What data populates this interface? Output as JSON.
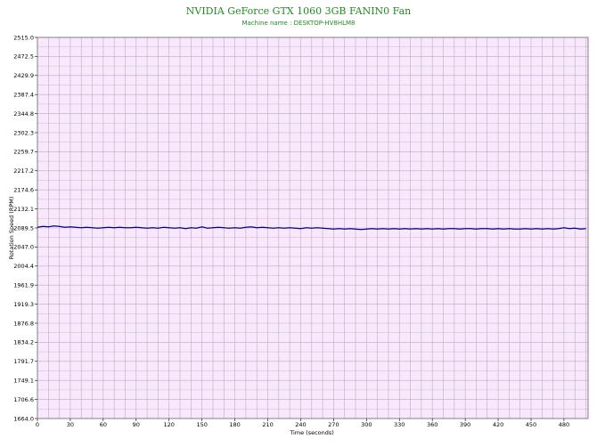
{
  "chart_data": {
    "type": "line",
    "title": "NVIDIA GeForce GTX 1060 3GB FANIN0 Fan",
    "subtitle": "Machine name : DESKTOP-HV8HLM8",
    "xlabel": "Time (seconds)",
    "ylabel": "Rotation Speed (RPM)",
    "xlim": [
      0,
      502
    ],
    "ylim": [
      1664.0,
      2515.0
    ],
    "xticks": [
      "0",
      "30",
      "60",
      "90",
      "120",
      "150",
      "180",
      "210",
      "240",
      "270",
      "300",
      "330",
      "360",
      "390",
      "420",
      "450",
      "480"
    ],
    "yticks": [
      "2515.0",
      "2472.5",
      "2429.9",
      "2387.4",
      "2344.8",
      "2302.3",
      "2259.7",
      "2217.2",
      "2174.6",
      "2132.1",
      "2089.5",
      "2047.0",
      "2004.4",
      "1961.9",
      "1919.3",
      "1876.8",
      "1834.2",
      "1791.7",
      "1749.1",
      "1706.6",
      "1664.0"
    ],
    "grid": true,
    "colors": {
      "background": "#f8e8fc",
      "grid": "#c6a6c8",
      "line": "#00008b",
      "title": "#228b22"
    },
    "series": [
      {
        "x": [
          0,
          5,
          10,
          15,
          20,
          25,
          30,
          35,
          40,
          45,
          50,
          55,
          60,
          65,
          70,
          75,
          80,
          85,
          90,
          95,
          100,
          105,
          110,
          115,
          120,
          125,
          130,
          135,
          140,
          145,
          150,
          155,
          160,
          165,
          170,
          175,
          180,
          185,
          190,
          195,
          200,
          205,
          210,
          215,
          220,
          225,
          230,
          235,
          240,
          245,
          250,
          255,
          260,
          265,
          270,
          275,
          280,
          285,
          290,
          295,
          300,
          305,
          310,
          315,
          320,
          325,
          330,
          335,
          340,
          345,
          350,
          355,
          360,
          365,
          370,
          375,
          380,
          385,
          390,
          395,
          400,
          405,
          410,
          415,
          420,
          425,
          430,
          435,
          440,
          445,
          450,
          455,
          460,
          465,
          470,
          475,
          480,
          485,
          490,
          495,
          500
        ],
        "y": [
          2091,
          2093,
          2092,
          2094,
          2093,
          2091,
          2092,
          2091,
          2090,
          2091,
          2090,
          2089,
          2090,
          2091,
          2090,
          2091,
          2090,
          2090,
          2091,
          2090,
          2089,
          2090,
          2089,
          2091,
          2090,
          2089,
          2090,
          2088,
          2090,
          2089,
          2092,
          2089,
          2090,
          2091,
          2090,
          2089,
          2090,
          2089,
          2091,
          2092,
          2090,
          2091,
          2090,
          2089,
          2090,
          2089,
          2090,
          2089,
          2088,
          2090,
          2089,
          2090,
          2089,
          2088,
          2087,
          2088,
          2087,
          2088,
          2087,
          2086,
          2087,
          2088,
          2087,
          2088,
          2087,
          2088,
          2087,
          2088,
          2087,
          2088,
          2087,
          2088,
          2087,
          2088,
          2087,
          2088,
          2088,
          2087,
          2088,
          2088,
          2087,
          2088,
          2088,
          2087,
          2088,
          2087,
          2088,
          2087,
          2087,
          2088,
          2087,
          2088,
          2087,
          2088,
          2087,
          2088,
          2090,
          2088,
          2089,
          2087,
          2088
        ]
      }
    ]
  }
}
